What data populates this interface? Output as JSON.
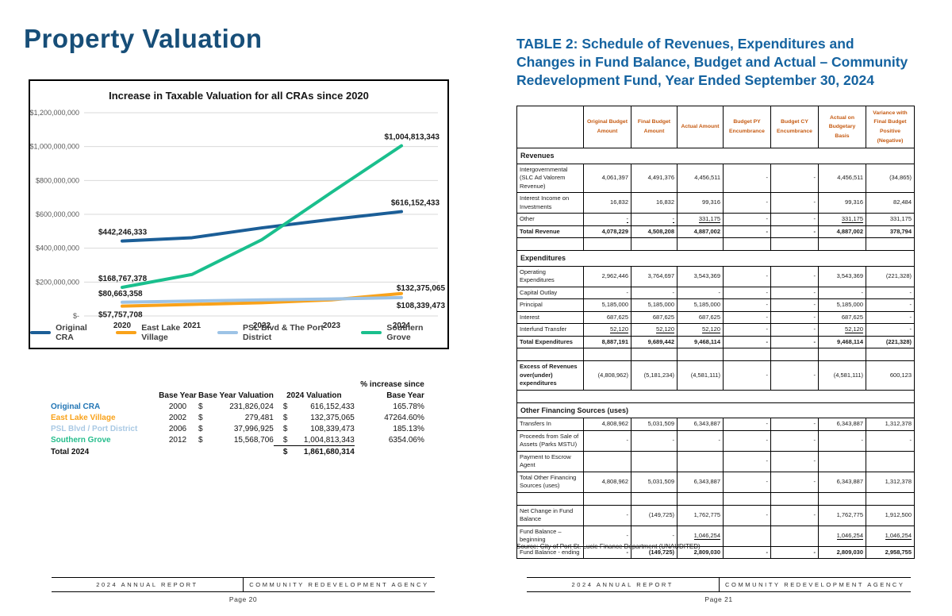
{
  "left": {
    "title": "Property Valuation",
    "footer": {
      "report": "2024 ANNUAL REPORT",
      "agency": "COMMUNITY REDEVELOPMENT AGENCY",
      "page": "Page 20"
    },
    "summary_table": {
      "header_line1": "% increase since",
      "headers": {
        "base_year": "Base Year",
        "base_val": "Base Year Valuation",
        "val_2024": "2024 Valuation",
        "pct2": "Base Year"
      },
      "rows": [
        {
          "label": "Original CRA",
          "color": "#2175B5",
          "base_year": "2000",
          "dollar": "$",
          "base_val": "231,826,024",
          "dollar2": "$",
          "val_2024": "616,152,433",
          "pct": "165.78%"
        },
        {
          "label": "East Lake Village",
          "color": "#F9A21A",
          "base_year": "2002",
          "dollar": "$",
          "base_val": "279,481",
          "dollar2": "$",
          "val_2024": "132,375,065",
          "pct": "47264.60%"
        },
        {
          "label": "PSL Blvd / Port District",
          "color": "#A9C9E4",
          "base_year": "2006",
          "dollar": "$",
          "base_val": "37,996,925",
          "dollar2": "$",
          "val_2024": "108,339,473",
          "pct": "185.13%"
        },
        {
          "label": "Southern Grove",
          "color": "#25BD8C",
          "base_year": "2012",
          "dollar": "$",
          "base_val": "15,568,706",
          "dollar2": "$",
          "val_2024": "1,004,813,343",
          "pct": "6354.06%",
          "sumline": true
        }
      ],
      "total": {
        "label": "Total 2024",
        "dollar": "$",
        "value": "1,861,680,314"
      }
    }
  },
  "chart_data": {
    "type": "line",
    "title": "Increase in Taxable Valuation for all CRAs since 2020",
    "x": [
      2020,
      2021,
      2022,
      2023,
      2024
    ],
    "series": [
      {
        "name": "Original CRA",
        "color": "#1B5E97",
        "values": [
          442246333,
          462000000,
          520000000,
          570000000,
          616152433
        ]
      },
      {
        "name": "East Lake Village",
        "color": "#F9A21A",
        "values": [
          57757708,
          68000000,
          78000000,
          95000000,
          132375065
        ]
      },
      {
        "name": "PSL Blvd & The Port District",
        "color": "#9DC3E6",
        "values": [
          80663358,
          88000000,
          95000000,
          100000000,
          108339473
        ]
      },
      {
        "name": "Southern Grove",
        "color": "#1ABF8D",
        "values": [
          168767378,
          245000000,
          450000000,
          730000000,
          1004813343
        ]
      }
    ],
    "ylim": [
      0,
      1200000000
    ],
    "ytick_labels": [
      "$-",
      "$200,000,000",
      "$400,000,000",
      "$600,000,000",
      "$800,000,000",
      "$1,000,000,000",
      "$1,200,000,000"
    ],
    "grid": true,
    "legend_position": "bottom",
    "point_labels": [
      {
        "series": "Original CRA",
        "year": 2020,
        "text": "$442,246,333",
        "placement": "above-left"
      },
      {
        "series": "Southern Grove",
        "year": 2020,
        "text": "$168,767,378",
        "placement": "above-left"
      },
      {
        "series": "PSL Blvd & The Port District",
        "year": 2020,
        "text": "$80,663,358",
        "placement": "above-left"
      },
      {
        "series": "East Lake Village",
        "year": 2020,
        "text": "$57,757,708",
        "placement": "below-left"
      },
      {
        "series": "Southern Grove",
        "year": 2024,
        "text": "$1,004,813,343",
        "placement": "above-end"
      },
      {
        "series": "Original CRA",
        "year": 2024,
        "text": "$616,152,433",
        "placement": "above-end"
      },
      {
        "series": "East Lake Village",
        "year": 2024,
        "text": "$132,375,065",
        "placement": "right-end"
      },
      {
        "series": "PSL Blvd & The Port District",
        "year": 2024,
        "text": "$108,339,473",
        "placement": "below-end"
      }
    ]
  },
  "right": {
    "title": "TABLE 2: Schedule of Revenues, Expenditures and Changes in Fund Balance, Budget and Actual – Community Redevelopment Fund, Year Ended September 30, 2024",
    "source": "Source: City of Port St. Lucie Finance Department (UNAUDITED)",
    "footer": {
      "report": "2024 ANNUAL REPORT",
      "agency": "COMMUNITY REDEVELOPMENT AGENCY",
      "page": "Page 21"
    },
    "table": {
      "columns": [
        "",
        "Original Budget Amount",
        "Final Budget Amount",
        "Actual Amount",
        "Budget PY Encumbrance",
        "Budget CY Encumbrance",
        "Actual on Budgetary Basis",
        "Variance with Final Budget Positive (Negative)"
      ],
      "rows": [
        {
          "type": "section",
          "label": "Revenues"
        },
        {
          "label": "Intergovernmental (SLC Ad Valorem Revenue)",
          "values": [
            "4,061,397",
            "4,491,376",
            "4,456,511",
            "-",
            "-",
            "4,456,511",
            "(34,865)"
          ]
        },
        {
          "label": "Interest Income on Investments",
          "values": [
            "16,832",
            "16,832",
            "99,316",
            "-",
            "-",
            "99,316",
            "82,484"
          ]
        },
        {
          "label": "Other",
          "values": [
            "-",
            "-",
            "331,175",
            "-",
            "-",
            "331,175",
            "331,175"
          ],
          "underline": [
            0,
            1,
            2,
            5
          ]
        },
        {
          "label": "Total Revenue",
          "bold": true,
          "values": [
            "4,078,229",
            "4,508,208",
            "4,887,002",
            "-",
            "-",
            "4,887,002",
            "378,794"
          ]
        },
        {
          "type": "spacer"
        },
        {
          "type": "section",
          "label": "Expenditures"
        },
        {
          "label": "Operating Expenditures",
          "values": [
            "2,962,446",
            "3,764,697",
            "3,543,369",
            "-",
            "-",
            "3,543,369",
            "(221,328)"
          ]
        },
        {
          "label": "Capital Outlay",
          "values": [
            "-",
            "-",
            "-",
            "-",
            "-",
            "-",
            "-"
          ]
        },
        {
          "label": "Principal",
          "values": [
            "5,185,000",
            "5,185,000",
            "5,185,000",
            "-",
            "-",
            "5,185,000",
            "-"
          ]
        },
        {
          "label": "Interest",
          "values": [
            "687,625",
            "687,625",
            "687,625",
            "-",
            "-",
            "687,625",
            "-"
          ]
        },
        {
          "label": "Interfund Transfer",
          "values": [
            "52,120",
            "52,120",
            "52,120",
            "-",
            "-",
            "52,120",
            "-"
          ],
          "underline": [
            0,
            1,
            2,
            5
          ]
        },
        {
          "label": "Total Expenditures",
          "bold": true,
          "values": [
            "8,887,191",
            "9,689,442",
            "9,468,114",
            "-",
            "-",
            "9,468,114",
            "(221,328)"
          ]
        },
        {
          "type": "spacer"
        },
        {
          "label": "Excess of Revenues over(under) expenditures",
          "boldLabel": true,
          "values": [
            "(4,808,962)",
            "(5,181,234)",
            "(4,581,111)",
            "-",
            "-",
            "(4,581,111)",
            "600,123"
          ]
        },
        {
          "type": "spacer",
          "clean": true
        },
        {
          "type": "section",
          "label": "Other Financing Sources (uses)"
        },
        {
          "label": "Transfers In",
          "values": [
            "4,808,962",
            "5,031,509",
            "6,343,887",
            "-",
            "-",
            "6,343,887",
            "1,312,378"
          ]
        },
        {
          "label": "Proceeds from Sale of Assets (Parks MSTU)",
          "values": [
            "-",
            "-",
            "-",
            "-",
            "-",
            "-",
            "-"
          ]
        },
        {
          "label": "Payment to Escrow Agent",
          "values": [
            "",
            "",
            "",
            "-",
            "-",
            "",
            ""
          ]
        },
        {
          "label": "Total Other Financing Sources (uses)",
          "values": [
            "4,808,962",
            "5,031,509",
            "6,343,887",
            "-",
            "-",
            "6,343,887",
            "1,312,378"
          ]
        },
        {
          "type": "spacer"
        },
        {
          "label": "Net Change in Fund Balance",
          "values": [
            "-",
            "(149,725)",
            "1,762,775",
            "-",
            "-",
            "1,762,775",
            "1,912,500"
          ]
        },
        {
          "label": "Fund Balance – beginning",
          "values": [
            "-",
            "-",
            "1,046,254",
            "",
            "",
            "1,046,254",
            "1,046,254"
          ],
          "underline": [
            2,
            5,
            6
          ]
        },
        {
          "label": "Fund Balance - ending",
          "boldValues": true,
          "values": [
            "-",
            "(149,725)",
            "2,809,030",
            "-",
            "-",
            "2,809,030",
            "2,958,755"
          ]
        }
      ]
    }
  }
}
